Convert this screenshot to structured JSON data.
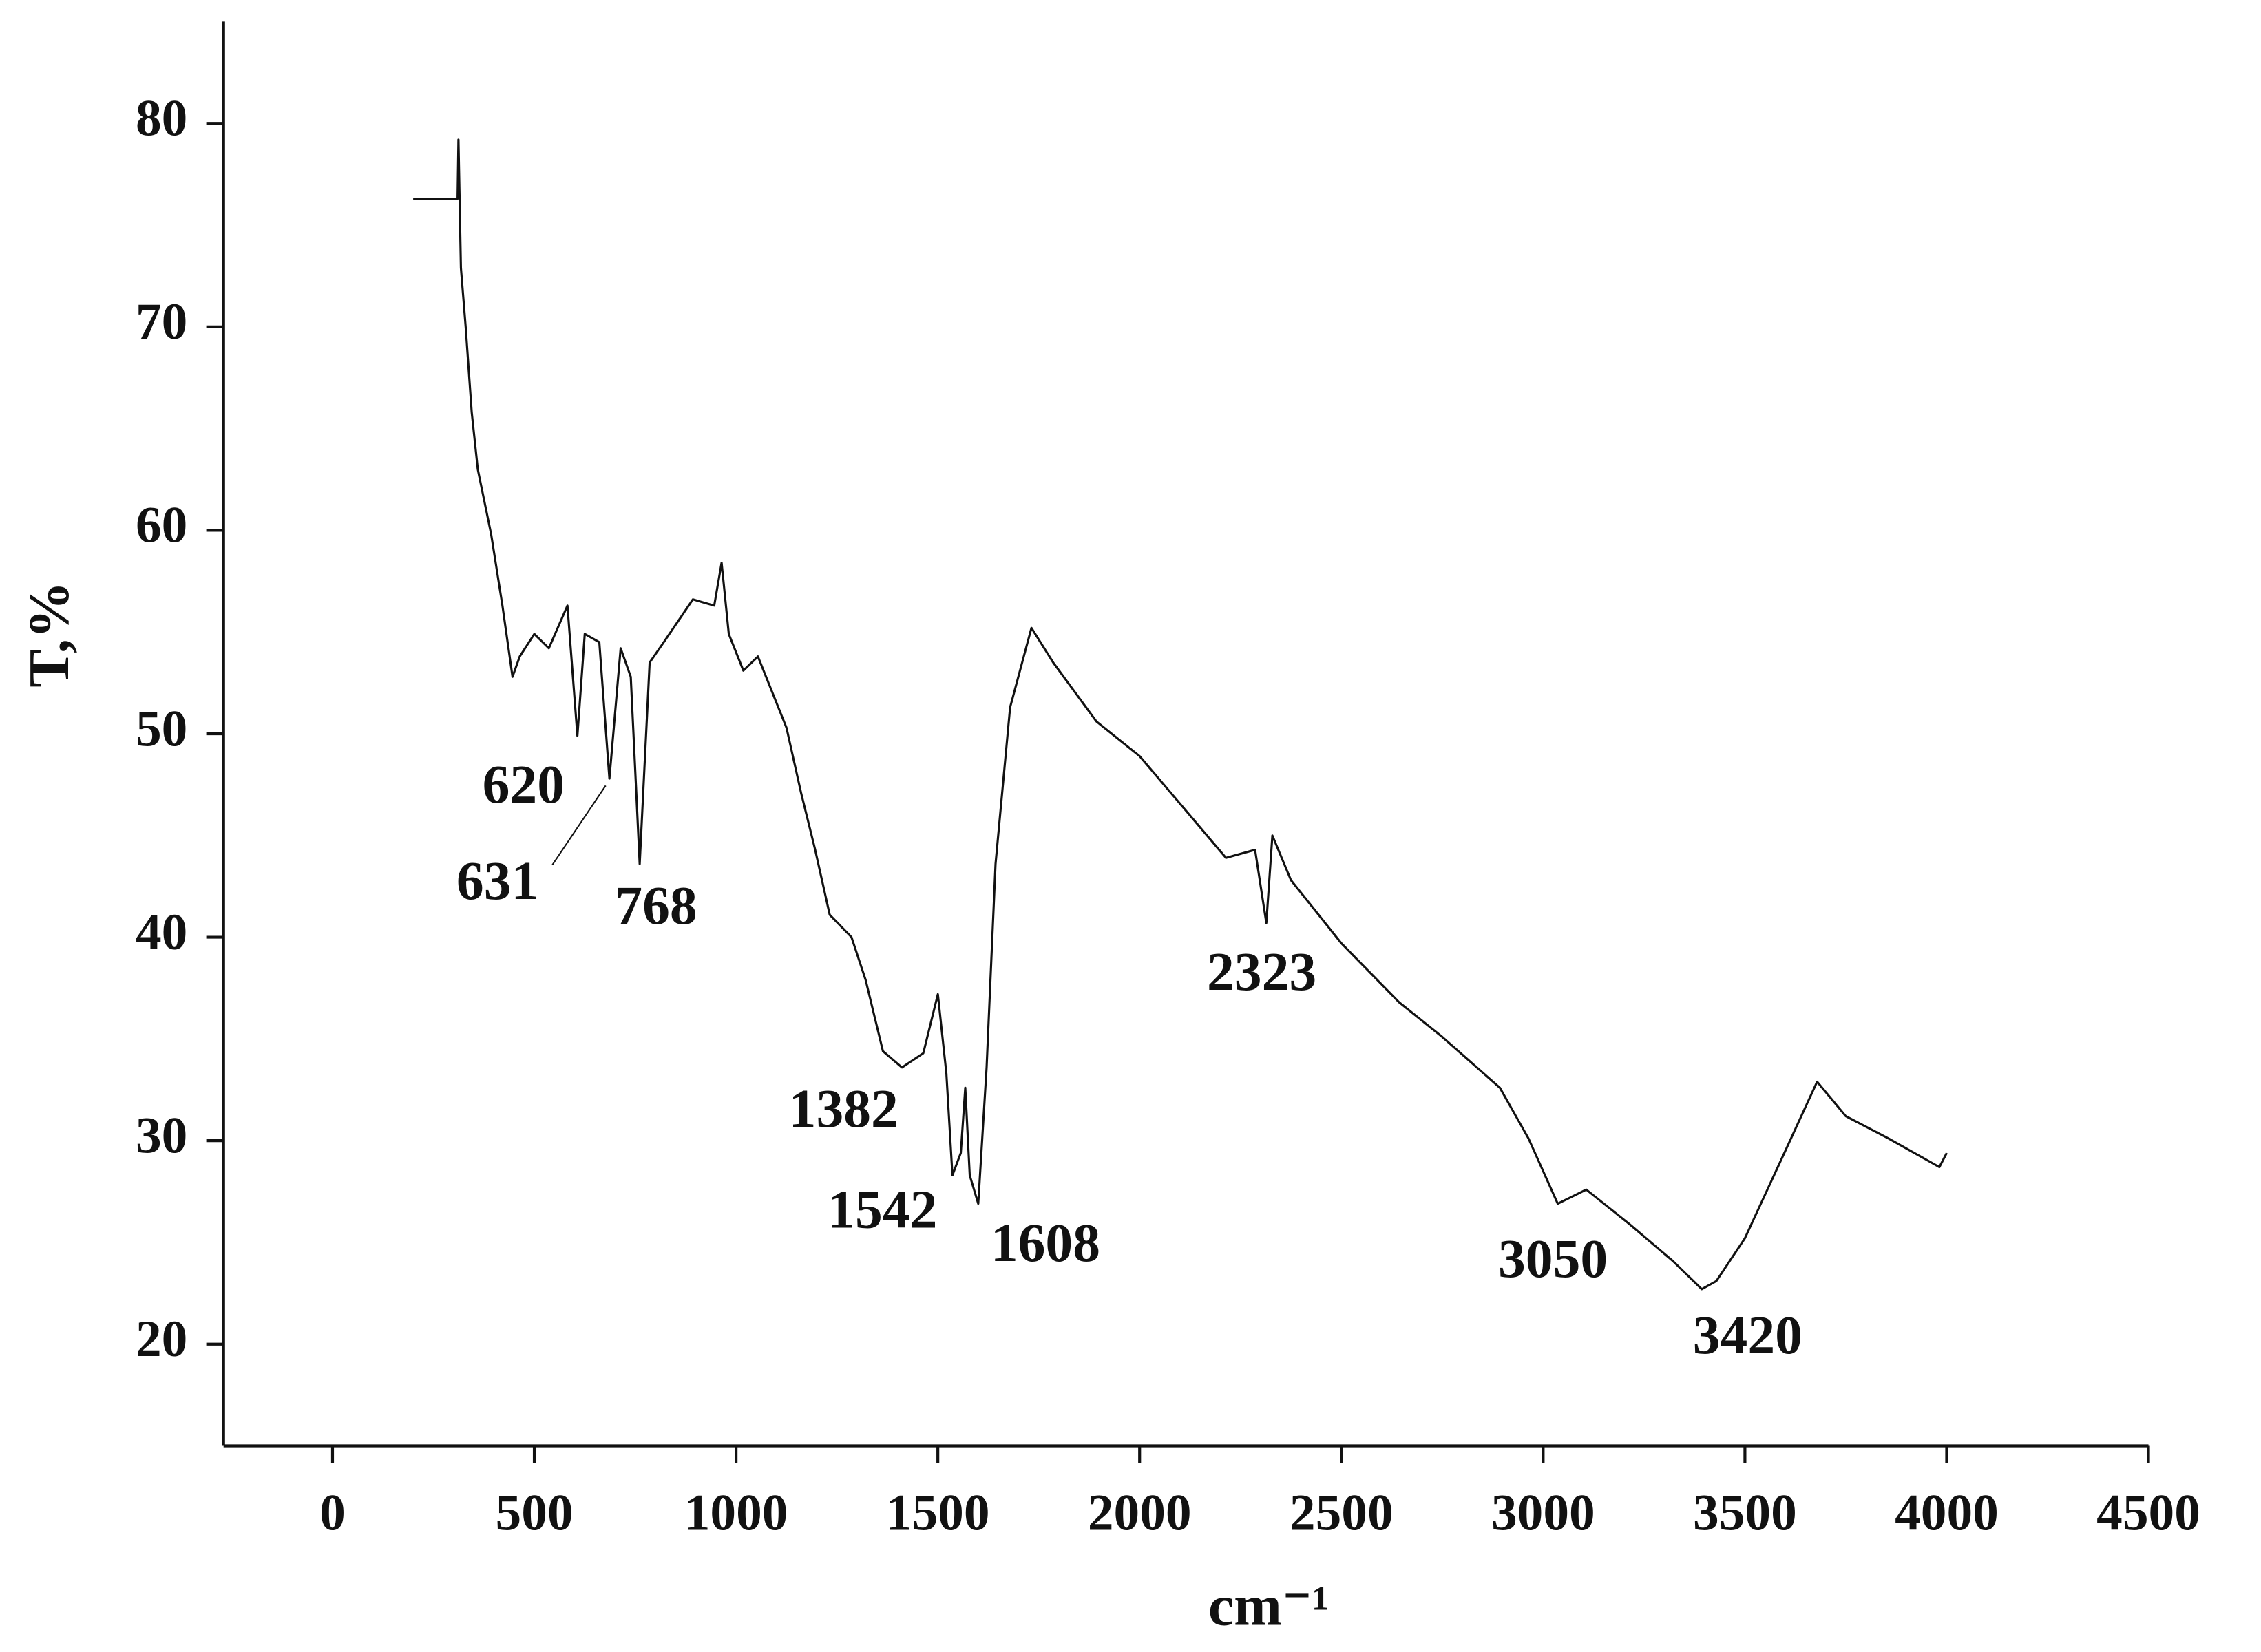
{
  "chart_data": {
    "type": "line",
    "x_label": "cm⁻¹",
    "y_label": "T,%",
    "color": "#111111",
    "xlim": [
      -270,
      4500
    ],
    "ylim": [
      15,
      85
    ],
    "xticks": [
      0,
      500,
      1000,
      1500,
      2000,
      2500,
      3000,
      3500,
      4000,
      4500
    ],
    "yticks": [
      20,
      30,
      40,
      50,
      60,
      70,
      80
    ],
    "annotations": [
      "620",
      "631",
      "768",
      "1382",
      "1542",
      "1608",
      "2323",
      "3050",
      "3420"
    ],
    "x": [
      200,
      310,
      312,
      318,
      330,
      345,
      360,
      393,
      421,
      446,
      464,
      500,
      536,
      582,
      607,
      625,
      661,
      686,
      714,
      739,
      761,
      786,
      821,
      893,
      946,
      964,
      982,
      1018,
      1054,
      1125,
      1161,
      1196,
      1232,
      1286,
      1321,
      1364,
      1411,
      1464,
      1500,
      1521,
      1536,
      1557,
      1568,
      1579,
      1600,
      1621,
      1643,
      1679,
      1732,
      1786,
      1893,
      2000,
      2107,
      2214,
      2286,
      2314,
      2329,
      2375,
      2500,
      2643,
      2750,
      2893,
      2964,
      3036,
      3107,
      3214,
      3321,
      3393,
      3429,
      3500,
      3607,
      3679,
      3750,
      3857,
      3982,
      4000
    ],
    "values": [
      76.3,
      76.3,
      79.2,
      72.9,
      70,
      65.8,
      63,
      59.8,
      56.3,
      52.8,
      53.8,
      54.9,
      54.2,
      56.3,
      49.9,
      54.9,
      54.5,
      47.8,
      54.2,
      52.8,
      43.6,
      53.5,
      54.5,
      56.6,
      56.3,
      58.4,
      54.9,
      53.1,
      53.8,
      50.3,
      47.1,
      44.3,
      41.1,
      40,
      37.9,
      34.4,
      33.6,
      34.3,
      37.2,
      33.3,
      28.3,
      29.4,
      32.6,
      28.3,
      26.9,
      33.6,
      43.6,
      51.3,
      55.2,
      53.5,
      50.6,
      48.9,
      46.4,
      43.9,
      44.3,
      40.7,
      45,
      42.8,
      39.7,
      36.8,
      35.1,
      32.6,
      30.1,
      26.9,
      27.6,
      25.9,
      24.1,
      22.7,
      23.1,
      25.2,
      29.8,
      32.9,
      31.2,
      30.1,
      28.7,
      29.4
    ]
  }
}
